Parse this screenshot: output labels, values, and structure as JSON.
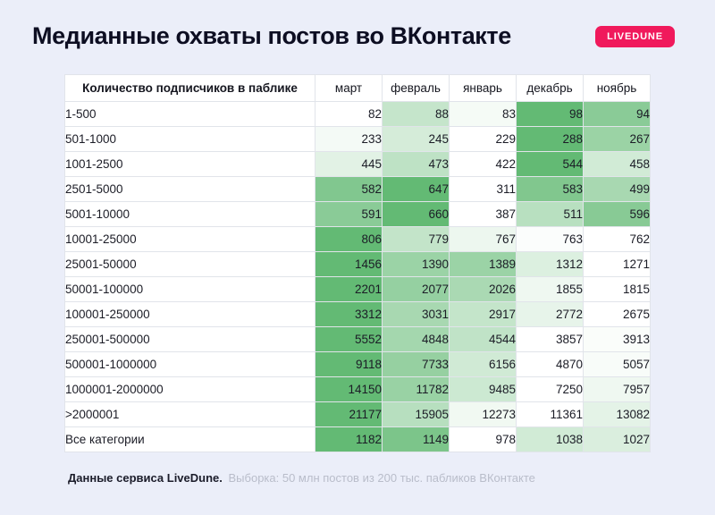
{
  "header": {
    "title": "Медианные охваты постов во ВКонтакте",
    "badge": "LIVEDUNE",
    "badge_color": "#f0195c"
  },
  "chart_data": {
    "type": "heatmap",
    "title": "Медианные охваты постов во ВКонтакте",
    "row_header": "Количество подписчиков в паблике",
    "columns": [
      "март",
      "февраль",
      "январь",
      "декабрь",
      "ноябрь"
    ],
    "rows": [
      {
        "label": "1-500",
        "values": [
          82,
          88,
          83,
          98,
          94
        ]
      },
      {
        "label": "501-1000",
        "values": [
          233,
          245,
          229,
          288,
          267
        ]
      },
      {
        "label": "1001-2500",
        "values": [
          445,
          473,
          422,
          544,
          458
        ]
      },
      {
        "label": "2501-5000",
        "values": [
          582,
          647,
          311,
          583,
          499
        ]
      },
      {
        "label": "5001-10000",
        "values": [
          591,
          660,
          387,
          511,
          596
        ]
      },
      {
        "label": "10001-25000",
        "values": [
          806,
          779,
          767,
          763,
          762
        ]
      },
      {
        "label": "25001-50000",
        "values": [
          1456,
          1390,
          1389,
          1312,
          1271
        ]
      },
      {
        "label": "50001-100000",
        "values": [
          2201,
          2077,
          2026,
          1855,
          1815
        ]
      },
      {
        "label": "100001-250000",
        "values": [
          3312,
          3031,
          2917,
          2772,
          2675
        ]
      },
      {
        "label": "250001-500000",
        "values": [
          5552,
          4848,
          4544,
          3857,
          3913
        ]
      },
      {
        "label": "500001-1000000",
        "values": [
          9118,
          7733,
          6156,
          4870,
          5057
        ]
      },
      {
        "label": "1000001-2000000",
        "values": [
          14150,
          11782,
          9485,
          7250,
          7957
        ]
      },
      {
        "label": ">2000001",
        "values": [
          21177,
          15905,
          12273,
          11361,
          13082
        ]
      },
      {
        "label": "Все категории",
        "values": [
          1182,
          1149,
          978,
          1038,
          1027
        ]
      }
    ],
    "color_scale": {
      "min_color": "#ffffff",
      "max_color": "#63ba74",
      "normalization": "per-row"
    },
    "grid": true,
    "legend_position": "none"
  },
  "footer": {
    "source_label": "Данные сервиса LiveDune.",
    "sample_note": "Выборка: 50 млн постов из 200 тыс. пабликов ВКонтакте"
  }
}
